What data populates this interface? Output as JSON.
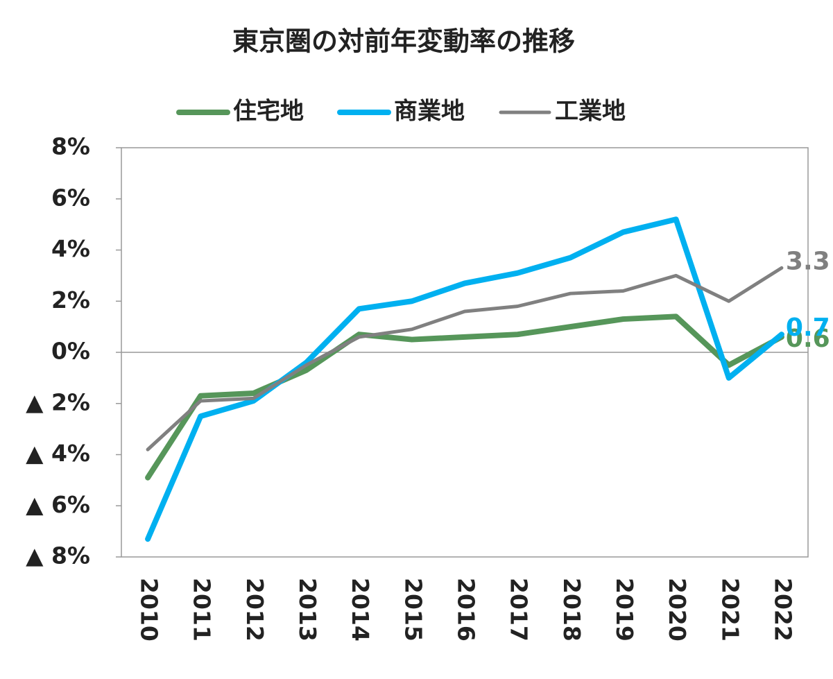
{
  "chart_data": {
    "type": "line",
    "title": "東京圏の対前年変動率の推移",
    "categories": [
      "2010",
      "2011",
      "2012",
      "2013",
      "2014",
      "2015",
      "2016",
      "2017",
      "2018",
      "2019",
      "2020",
      "2021",
      "2022"
    ],
    "series": [
      {
        "name": "住宅地",
        "color": "#56965a",
        "values": [
          -4.9,
          -1.7,
          -1.6,
          -0.7,
          0.7,
          0.5,
          0.6,
          0.7,
          1.0,
          1.3,
          1.4,
          -0.5,
          0.6
        ]
      },
      {
        "name": "商業地",
        "color": "#00b0f0",
        "values": [
          -7.3,
          -2.5,
          -1.9,
          -0.4,
          1.7,
          2.0,
          2.7,
          3.1,
          3.7,
          4.7,
          5.2,
          -1.0,
          0.7
        ]
      },
      {
        "name": "工業地",
        "color": "#808080",
        "values": [
          -3.8,
          -1.9,
          -1.8,
          -0.5,
          0.6,
          0.9,
          1.6,
          1.8,
          2.3,
          2.4,
          3.0,
          2.0,
          3.3
        ]
      }
    ],
    "ylim": [
      -8,
      8
    ],
    "yticks": [
      {
        "value": 8,
        "label": "8%"
      },
      {
        "value": 6,
        "label": "6%"
      },
      {
        "value": 4,
        "label": "4%"
      },
      {
        "value": 2,
        "label": "2%"
      },
      {
        "value": 0,
        "label": "0%"
      },
      {
        "value": -2,
        "label": "▲ 2%"
      },
      {
        "value": -4,
        "label": "▲ 4%"
      },
      {
        "value": -6,
        "label": "▲ 6%"
      },
      {
        "value": -8,
        "label": "▲ 8%"
      }
    ]
  }
}
